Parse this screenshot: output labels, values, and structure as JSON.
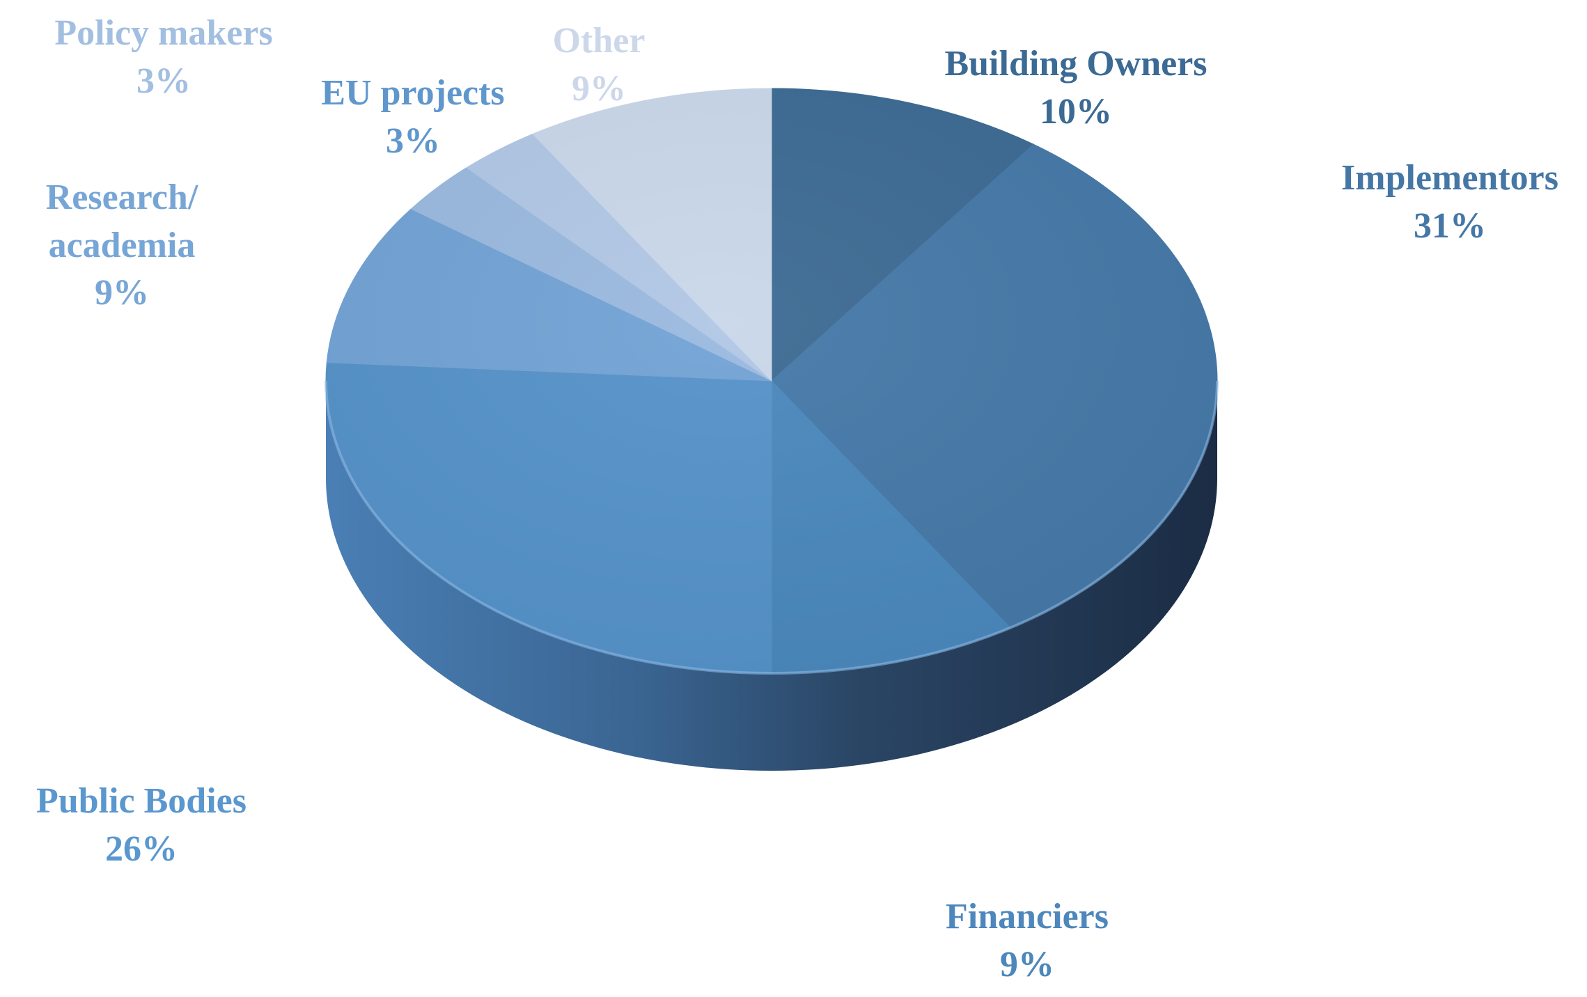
{
  "chart_data": {
    "type": "pie",
    "style": "3d-tilted",
    "start": "12 o'clock",
    "direction": "clockwise",
    "slices": [
      {
        "name": "Building Owners",
        "label_lines": [
          "Building Owners"
        ],
        "value": 10,
        "value_label": "10%",
        "color": "#3d6a93",
        "label_color": "#3b6a94"
      },
      {
        "name": "Implementors",
        "label_lines": [
          "Implementors"
        ],
        "value": 31,
        "value_label": "31%",
        "color": "#4679a8",
        "label_color": "#4577a6"
      },
      {
        "name": "Financiers",
        "label_lines": [
          "Financiers"
        ],
        "value": 9,
        "value_label": "9%",
        "color": "#4b88bd",
        "label_color": "#4d87bb"
      },
      {
        "name": "Public Bodies",
        "label_lines": [
          "Public Bodies"
        ],
        "value": 26,
        "value_label": "26%",
        "color": "#5592c9",
        "label_color": "#5a97cf"
      },
      {
        "name": "Research/ academia",
        "label_lines": [
          "Research/",
          "academia"
        ],
        "value": 9,
        "value_label": "9%",
        "color": "#72a3d5",
        "label_color": "#77a6d6"
      },
      {
        "name": "Policy makers",
        "label_lines": [
          "Policy makers"
        ],
        "value": 3,
        "value_label": "3%",
        "color": "#9ab9df",
        "label_color": "#a2bfe1"
      },
      {
        "name": "EU projects",
        "label_lines": [
          "EU projects"
        ],
        "value": 3,
        "value_label": "3%",
        "color": "#b1c7e5",
        "label_color": "#5f97cd"
      },
      {
        "name": "Other",
        "label_lines": [
          "Other"
        ],
        "value": 9,
        "value_label": "9%",
        "color": "#c9d7e9",
        "label_color": "#ccd8ea"
      }
    ]
  }
}
